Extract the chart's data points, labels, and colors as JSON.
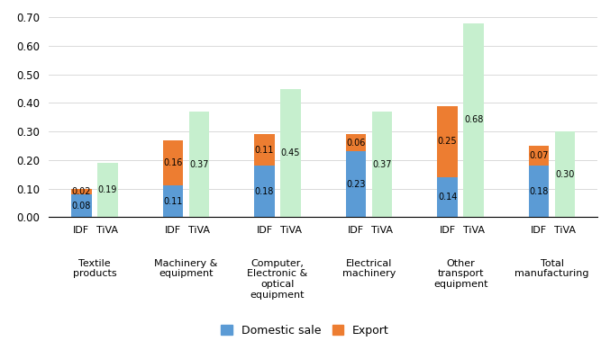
{
  "categories": [
    "Textile\nproducts",
    "Machinery &\nequipment",
    "Computer,\nElectronic &\noptical\nequipment",
    "Electrical\nmachinery",
    "Other\ntransport\nequipment",
    "Total\nmanufacturing"
  ],
  "idf_domestic": [
    0.08,
    0.11,
    0.18,
    0.23,
    0.14,
    0.18
  ],
  "idf_export": [
    0.02,
    0.16,
    0.11,
    0.06,
    0.25,
    0.07
  ],
  "tiva_total": [
    0.19,
    0.37,
    0.45,
    0.37,
    0.68,
    0.3
  ],
  "color_domestic": "#5B9BD5",
  "color_export": "#ED7D31",
  "color_tiva": "#C6EFCE",
  "bar_width": 0.22,
  "ylim": [
    0.0,
    0.7
  ],
  "yticks": [
    0.0,
    0.1,
    0.2,
    0.3,
    0.4,
    0.5,
    0.6,
    0.7
  ],
  "legend_labels": [
    "Domestic sale",
    "Export"
  ],
  "annotation_fontsize": 7.0,
  "tick_fontsize": 8.0,
  "cat_fontsize": 8.0
}
